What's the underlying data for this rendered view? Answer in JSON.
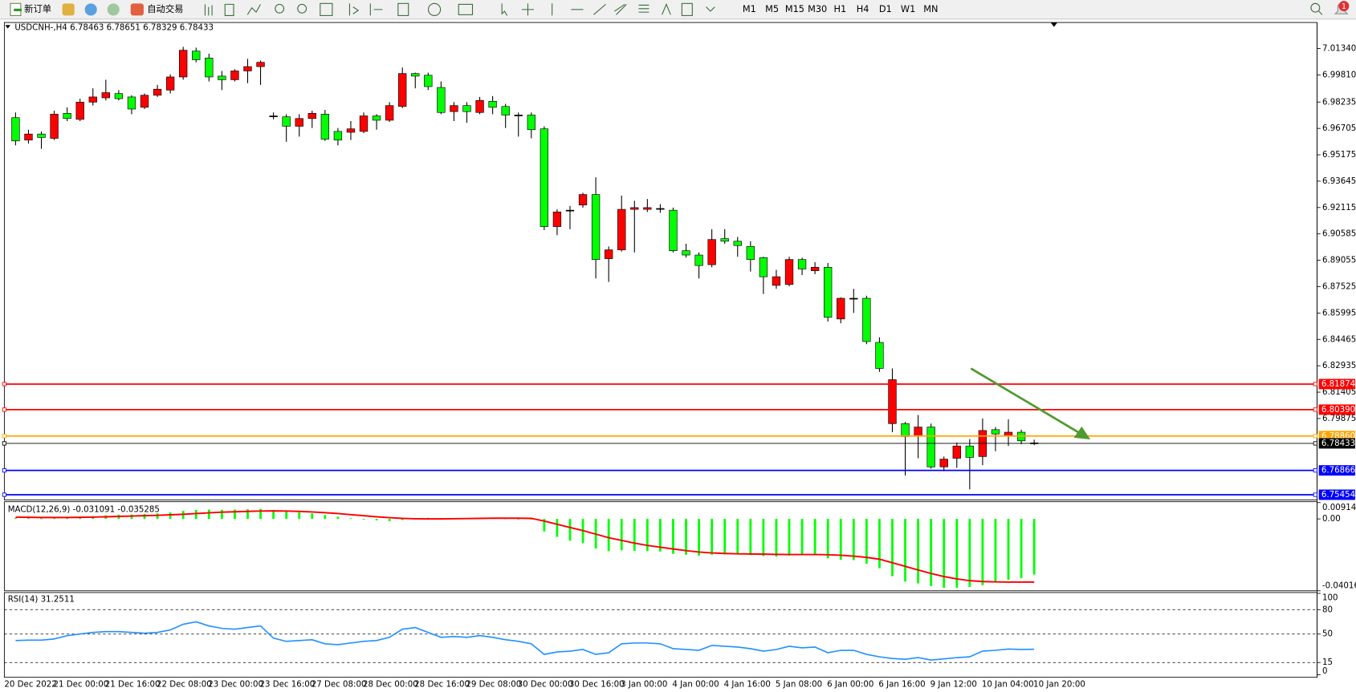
{
  "toolbar": {
    "new_order": "新订单",
    "auto_trading": "自动交易",
    "timeframes": [
      "M1",
      "M5",
      "M15",
      "M30",
      "H1",
      "H4",
      "D1",
      "W1",
      "MN"
    ],
    "notifications": "1"
  },
  "chart_data": [
    {
      "type": "candlestick",
      "title": "USDCNH-,H4  6.78463 6.78651 6.78329 6.78433",
      "categories": [
        "20 Dec 2022",
        null,
        null,
        "21 Dec 00:00",
        null,
        null,
        null,
        "21 Dec 16:00",
        null,
        null,
        null,
        "22 Dec 08:00",
        null,
        null,
        null,
        "23 Dec 00:00",
        null,
        null,
        null,
        "23 Dec 16:00",
        null,
        null,
        null,
        "27 Dec 08:00",
        null,
        null,
        null,
        "28 Dec 00:00",
        null,
        null,
        null,
        "28 Dec 16:00",
        null,
        null,
        null,
        "29 Dec 08:00",
        null,
        null,
        null,
        "30 Dec 00:00",
        null,
        null,
        null,
        "30 Dec 16:00",
        null,
        null,
        null,
        "3 Jan 00:00",
        null,
        null,
        null,
        "4 Jan 00:00",
        null,
        null,
        null,
        "4 Jan 16:00",
        null,
        null,
        null,
        "5 Jan 08:00",
        null,
        null,
        null,
        "6 Jan 00:00",
        null,
        null,
        null,
        "6 Jan 16:00",
        null,
        null,
        null,
        "9 Jan 12:00",
        null,
        null,
        null,
        "10 Jan 04:00",
        null,
        null,
        null,
        "10 Jan 20:00"
      ],
      "open": [
        6.9733,
        6.9603,
        6.9638,
        6.9613,
        6.9758,
        6.9723,
        6.9823,
        6.9848,
        6.9873,
        6.9853,
        6.9793,
        6.9863,
        6.9893,
        6.9969,
        7.0119,
        7.0079,
        6.9974,
        6.9953,
        7.0004,
        7.0029,
        6.9743,
        6.9738,
        6.9683,
        6.9728,
        6.9753,
        6.9653,
        6.9648,
        6.9653,
        6.9743,
        6.9718,
        6.9798,
        6.9989,
        6.9979,
        6.9908,
        6.9768,
        6.9803,
        6.9763,
        6.9828,
        6.9798,
        6.9748,
        6.9748,
        6.9668,
        6.9101,
        6.9196,
        6.9226,
        6.9287,
        6.8915,
        6.8966,
        6.9201,
        6.9201,
        6.9206,
        6.9196,
        6.8961,
        6.8936,
        6.888,
        6.9031,
        6.9016,
        6.8986,
        6.8921,
        6.876,
        6.8765,
        6.891,
        6.8845,
        6.8865,
        6.8565,
        6.8685,
        6.8685,
        6.8429,
        6.7958,
        6.7958,
        6.7888,
        6.7938,
        6.7707,
        6.7757,
        6.7828,
        6.7767,
        6.7923,
        6.7888,
        6.7908,
        6.78463
      ],
      "high": [
        6.9763,
        6.9663,
        6.9653,
        6.9773,
        6.9793,
        6.9843,
        6.9903,
        6.9953,
        6.9893,
        6.9863,
        6.9873,
        6.9923,
        6.9984,
        7.0144,
        7.0139,
        7.0104,
        7.0004,
        7.0014,
        7.0074,
        7.0064,
        6.9763,
        6.9753,
        6.9753,
        6.9773,
        6.9778,
        6.9673,
        6.9713,
        6.9763,
        6.9753,
        6.9823,
        7.0024,
        6.9994,
        6.9994,
        6.9943,
        6.9823,
        6.9823,
        6.9853,
        6.9858,
        6.9813,
        6.9763,
        6.9763,
        6.9683,
        6.9201,
        6.9221,
        6.9297,
        6.9387,
        6.8986,
        6.9281,
        6.9251,
        6.9261,
        6.9231,
        6.9211,
        6.9001,
        6.8951,
        6.9086,
        6.9086,
        6.9041,
        6.9016,
        6.8926,
        6.885,
        6.8926,
        6.8921,
        6.8895,
        6.889,
        6.869,
        6.874,
        6.87,
        6.8459,
        6.8278,
        6.7968,
        6.8008,
        6.7958,
        6.7767,
        6.7848,
        6.7868,
        6.7988,
        6.7938,
        6.7983,
        6.7923,
        6.78651
      ],
      "low": [
        6.9572,
        6.9583,
        6.9552,
        6.9603,
        6.9713,
        6.9713,
        6.9803,
        6.9833,
        6.9833,
        6.9753,
        6.9783,
        6.9853,
        6.9873,
        6.9953,
        7.0054,
        6.9943,
        6.9893,
        6.9943,
        6.9933,
        6.9923,
        6.9723,
        6.9593,
        6.9623,
        6.9673,
        6.9598,
        6.9572,
        6.9603,
        6.9643,
        6.9663,
        6.9708,
        6.9788,
        6.9903,
        6.9893,
        6.9753,
        6.9713,
        6.9703,
        6.9753,
        6.9753,
        6.9673,
        6.9623,
        6.9613,
        6.9081,
        6.9051,
        6.9086,
        6.9211,
        6.88,
        6.878,
        6.8956,
        6.8951,
        6.9186,
        6.9181,
        6.8951,
        6.8921,
        6.88,
        6.8865,
        6.9001,
        6.8926,
        6.884,
        6.871,
        6.874,
        6.8755,
        6.882,
        6.8825,
        6.855,
        6.854,
        6.86,
        6.8419,
        6.8258,
        6.7908,
        6.7657,
        6.7757,
        6.7697,
        6.7682,
        6.7702,
        6.7577,
        6.7717,
        6.7798,
        6.7828,
        6.7838,
        6.78329
      ],
      "close": [
        6.9598,
        6.9638,
        6.9618,
        6.9753,
        6.9728,
        6.9823,
        6.9853,
        6.9878,
        6.9843,
        6.9783,
        6.9863,
        6.9898,
        6.9969,
        7.0124,
        7.0069,
        6.9969,
        6.9953,
        7.0004,
        7.0029,
        7.0054,
        6.9743,
        6.9683,
        6.9728,
        6.9758,
        6.9608,
        6.9603,
        6.9668,
        6.9743,
        6.9718,
        6.9803,
        6.9989,
        6.9974,
        6.9913,
        6.9763,
        6.9803,
        6.9768,
        6.9833,
        6.9793,
        6.9748,
        6.9748,
        6.9663,
        6.9101,
        6.9186,
        6.9196,
        6.9287,
        6.891,
        6.8966,
        6.9201,
        6.9211,
        6.9211,
        6.9206,
        6.8961,
        6.8936,
        6.8875,
        6.9026,
        6.9016,
        6.8991,
        6.891,
        6.881,
        6.881,
        6.891,
        6.8855,
        6.8865,
        6.8575,
        6.8685,
        6.8685,
        6.8434,
        6.8278,
        6.8213,
        6.7883,
        6.7938,
        6.7707,
        6.7752,
        6.7828,
        6.7762,
        6.7918,
        6.7898,
        6.7908,
        6.7858,
        6.78433
      ],
      "up_color": "#ff0000",
      "down_color": "#00ff00",
      "ylim": [
        6.7515,
        7.0285
      ],
      "yticks": [
        {
          "value": 7.0134,
          "label": "7.01340"
        },
        {
          "value": 6.9981,
          "label": "6.99810"
        },
        6.98235,
        6.96705,
        6.95175,
        6.93645,
        6.92115,
        6.90585,
        6.89055,
        6.87525,
        6.85995,
        6.84465,
        6.82935,
        6.81405,
        6.79875
      ],
      "grid": false,
      "hlines": [
        {
          "value": 6.81874,
          "label": "6.81874",
          "color": "#ff0000"
        },
        {
          "value": 6.8039,
          "label": "6.80390",
          "color": "#ff0000"
        },
        {
          "value": 6.7886,
          "label": "6.78860",
          "color": "#ffa500"
        },
        {
          "value": 6.78433,
          "label": "6.78433",
          "color": "#000000"
        },
        {
          "value": 6.76866,
          "label": "6.76866",
          "color": "#0000ff"
        },
        {
          "value": 6.75454,
          "label": "6.75454",
          "color": "#0000ff"
        }
      ]
    },
    {
      "type": "macd",
      "title": "MACD(12,26,9) -0.031091 -0.035285",
      "histogram": [
        0.0005,
        0.0004,
        0.0003,
        0.0006,
        0.0009,
        0.0012,
        0.0016,
        0.002,
        0.0023,
        0.0025,
        0.0028,
        0.0031,
        0.0036,
        0.0045,
        0.005,
        0.0052,
        0.0051,
        0.0052,
        0.0054,
        0.0056,
        0.0049,
        0.0042,
        0.0036,
        0.0031,
        0.0022,
        0.0012,
        0.0004,
        -0.0002,
        -0.0008,
        -0.0012,
        -0.0006,
        0.0002,
        0.0006,
        0.0005,
        0.0004,
        0.0004,
        0.0004,
        0.0005,
        0.0003,
        0.0001,
        -0.0002,
        -0.007,
        -0.01,
        -0.0122,
        -0.0135,
        -0.0165,
        -0.018,
        -0.0175,
        -0.0178,
        -0.018,
        -0.0182,
        -0.0195,
        -0.02,
        -0.0205,
        -0.02,
        -0.0198,
        -0.0198,
        -0.0202,
        -0.0208,
        -0.021,
        -0.0205,
        -0.0203,
        -0.0202,
        -0.022,
        -0.0228,
        -0.023,
        -0.025,
        -0.0275,
        -0.032,
        -0.035,
        -0.036,
        -0.0375,
        -0.0385,
        -0.0385,
        -0.038,
        -0.037,
        -0.0355,
        -0.034,
        -0.033,
        -0.031091
      ],
      "signal": [
        0.001,
        0.0009,
        0.0008,
        0.0008,
        0.0008,
        0.0009,
        0.001,
        0.0012,
        0.0014,
        0.0016,
        0.0018,
        0.002,
        0.0023,
        0.0026,
        0.003,
        0.0034,
        0.0038,
        0.004,
        0.0042,
        0.0044,
        0.0045,
        0.0044,
        0.0042,
        0.0039,
        0.0035,
        0.003,
        0.0024,
        0.0018,
        0.0012,
        0.0007,
        0.0003,
        0.0001,
        0.0,
        0.0,
        0.0001,
        0.0002,
        0.0003,
        0.0004,
        0.0004,
        0.0004,
        0.0003,
        -0.0012,
        -0.003,
        -0.0048,
        -0.0065,
        -0.0085,
        -0.0105,
        -0.012,
        -0.0135,
        -0.0148,
        -0.0158,
        -0.0168,
        -0.0177,
        -0.0185,
        -0.019,
        -0.0193,
        -0.0195,
        -0.0196,
        -0.0197,
        -0.0198,
        -0.0199,
        -0.0199,
        -0.0199,
        -0.02,
        -0.0203,
        -0.0208,
        -0.0215,
        -0.0225,
        -0.0245,
        -0.0265,
        -0.0285,
        -0.0305,
        -0.0322,
        -0.0335,
        -0.0345,
        -0.035,
        -0.0352,
        -0.0353,
        -0.0353,
        -0.035285
      ],
      "histogram_color": "#00ff00",
      "signal_color": "#ff0000",
      "ylim": [
        -0.040162,
        0.009142
      ],
      "yticks": [
        0.009142,
        {
          "value": 0,
          "label": "0.00"
        },
        -0.040162
      ]
    },
    {
      "type": "rsi",
      "title": "RSI(14) 31.2511",
      "values": [
        42,
        42.5,
        42.5,
        44,
        48,
        50,
        52,
        53,
        53,
        52,
        51,
        52,
        55,
        62,
        65,
        60,
        57,
        56,
        58,
        60,
        45,
        41,
        42,
        43,
        38,
        37,
        39,
        41,
        42,
        46,
        56,
        58,
        52,
        46,
        47,
        46,
        48,
        46,
        43,
        41,
        38,
        25,
        28,
        29,
        31,
        25,
        27,
        38,
        39,
        39,
        38,
        32,
        31,
        30,
        36,
        35,
        34,
        32,
        29,
        31,
        35,
        33,
        34,
        27,
        30,
        30,
        25,
        22,
        20,
        19,
        21,
        18,
        19.5,
        21,
        22,
        29,
        30,
        31.5,
        31,
        31.2511
      ],
      "color": "#1e90ff",
      "ylim": [
        0,
        100
      ],
      "yticks": [
        100,
        80,
        50,
        15,
        0
      ],
      "levels": [
        80,
        50,
        15
      ]
    }
  ]
}
